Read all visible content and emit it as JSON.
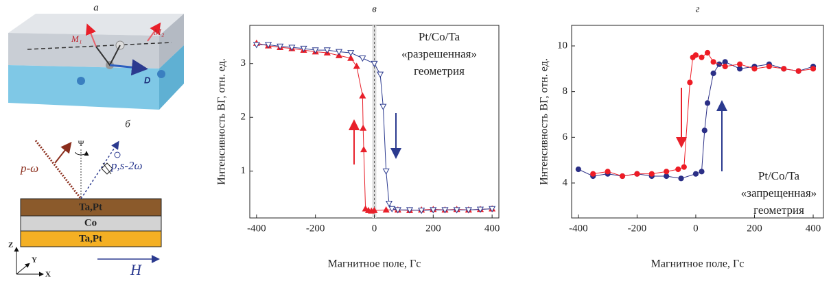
{
  "diagram_a": {
    "label": "а",
    "m1": "M₁",
    "m2": "M₂",
    "d": "D"
  },
  "diagram_b": {
    "label": "б",
    "psi": "Ψ",
    "incident": "p-ω",
    "outgoing": "p,s-2ω",
    "layer_top": "Ta,Pt",
    "layer_mid": "Co",
    "layer_bottom": "Ta,Pt",
    "axis_z": "Z",
    "axis_y": "Y",
    "axis_x": "X",
    "field": "H"
  },
  "chart_data": [
    {
      "type": "line",
      "title": "в",
      "xlabel": "Магнитное поле, Гс",
      "ylabel": "Интенсивность ВГ, отн. ед.",
      "annotation": [
        "Pt/Co/Ta",
        "«разрешенная»",
        "геометрия"
      ],
      "zero_line": true,
      "xlim": [
        -423,
        423
      ],
      "ylim": [
        0.13,
        3.71
      ],
      "xticks": [
        -400,
        -200,
        0,
        200,
        400
      ],
      "yticks": [
        1,
        2,
        3
      ],
      "series": [
        {
          "color": "#e8202a",
          "marker": "triangle-up",
          "filled": true,
          "x": [
            -400,
            -360,
            -320,
            -280,
            -240,
            -200,
            -160,
            -120,
            -80,
            -60,
            -40,
            -38,
            -36,
            -30,
            -20,
            -10,
            0,
            40,
            80,
            120,
            160,
            200,
            240,
            280,
            320,
            360,
            400
          ],
          "values": [
            3.38,
            3.33,
            3.3,
            3.28,
            3.25,
            3.22,
            3.2,
            3.15,
            3.1,
            2.95,
            2.4,
            1.8,
            1.4,
            0.3,
            0.27,
            0.26,
            0.27,
            0.28,
            0.28,
            0.27,
            0.28,
            0.29,
            0.28,
            0.29,
            0.28,
            0.29,
            0.3
          ]
        },
        {
          "color": "#2b3a8f",
          "marker": "triangle-down",
          "filled": false,
          "x": [
            -400,
            -360,
            -320,
            -280,
            -240,
            -200,
            -160,
            -120,
            -80,
            -40,
            0,
            20,
            30,
            40,
            50,
            60,
            80,
            120,
            160,
            200,
            240,
            280,
            320,
            360,
            400
          ],
          "values": [
            3.35,
            3.35,
            3.32,
            3.3,
            3.28,
            3.25,
            3.25,
            3.22,
            3.2,
            3.1,
            3.0,
            2.8,
            2.2,
            1.0,
            0.4,
            0.3,
            0.28,
            0.28,
            0.27,
            0.28,
            0.28,
            0.28,
            0.28,
            0.29,
            0.3
          ]
        }
      ]
    },
    {
      "type": "line",
      "title": "г",
      "xlabel": "Магнитное поле, Гс",
      "ylabel": "Интенсивность ВГ, отн. ед.",
      "annotation": [
        "Pt/Co/Ta",
        "«запрещенная»",
        "геометрия"
      ],
      "zero_line": false,
      "xlim": [
        -423,
        435
      ],
      "ylim": [
        2.47,
        10.9
      ],
      "xticks": [
        -400,
        -200,
        0,
        200,
        400
      ],
      "yticks": [
        4,
        6,
        8,
        10
      ],
      "series": [
        {
          "color": "#2b2f86",
          "marker": "circle",
          "filled": true,
          "x": [
            -400,
            -350,
            -300,
            -250,
            -200,
            -150,
            -100,
            -50,
            0,
            20,
            30,
            40,
            60,
            80,
            100,
            150,
            200,
            250,
            300,
            350,
            400
          ],
          "values": [
            4.6,
            4.3,
            4.4,
            4.3,
            4.4,
            4.3,
            4.3,
            4.2,
            4.4,
            4.5,
            6.3,
            7.5,
            8.8,
            9.2,
            9.3,
            9.0,
            9.1,
            9.2,
            9.0,
            8.9,
            9.1
          ]
        },
        {
          "color": "#ee1c25",
          "marker": "circle",
          "filled": true,
          "x": [
            -350,
            -300,
            -250,
            -200,
            -150,
            -100,
            -60,
            -40,
            -20,
            -10,
            0,
            20,
            40,
            60,
            100,
            150,
            200,
            250,
            300,
            350,
            400
          ],
          "values": [
            4.4,
            4.5,
            4.3,
            4.4,
            4.4,
            4.5,
            4.6,
            4.7,
            8.4,
            9.5,
            9.6,
            9.5,
            9.7,
            9.3,
            9.1,
            9.2,
            9.0,
            9.1,
            9.0,
            8.9,
            9.0
          ]
        }
      ]
    }
  ]
}
